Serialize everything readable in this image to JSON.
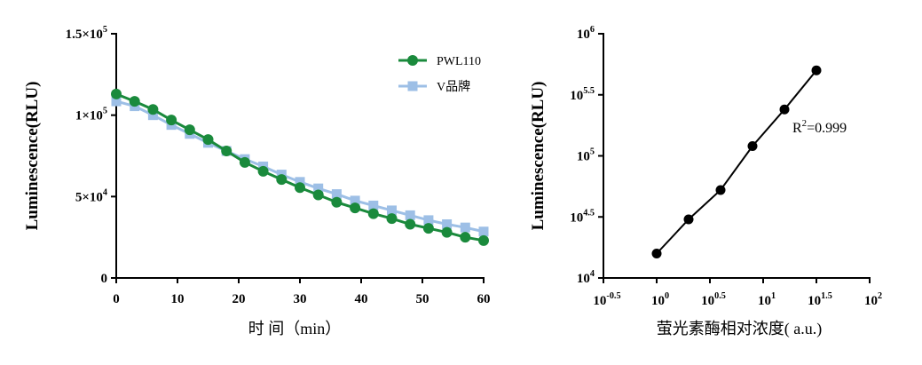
{
  "chart_data": [
    {
      "type": "line",
      "ylabel": "Luminescence(RLU)",
      "xlabel": "时 间（min）",
      "xlim": [
        0,
        60
      ],
      "ylim": [
        0,
        150000
      ],
      "x_ticks": [
        "0",
        "10",
        "20",
        "30",
        "40",
        "50",
        "60"
      ],
      "y_ticks": [
        {
          "base": "0",
          "exp": ""
        },
        {
          "base": "5×10",
          "exp": "4"
        },
        {
          "base": "1×10",
          "exp": "5"
        },
        {
          "base": "1.5×10",
          "exp": "5"
        }
      ],
      "grid": false,
      "legend_position": "top-right",
      "x": [
        0,
        3,
        6,
        9,
        12,
        15,
        18,
        21,
        24,
        27,
        30,
        33,
        36,
        39,
        42,
        45,
        48,
        51,
        54,
        57,
        60
      ],
      "series": [
        {
          "name": "PWL110",
          "color": "#1a8a3c",
          "marker": "circle",
          "values": [
            113000,
            108500,
            103500,
            97000,
            91000,
            85000,
            78000,
            71000,
            65500,
            60500,
            55500,
            51000,
            46500,
            43000,
            39500,
            36500,
            33000,
            30500,
            28000,
            25000,
            23000
          ]
        },
        {
          "name": "V品牌",
          "color": "#9dbfe6",
          "marker": "square",
          "values": [
            108500,
            105500,
            100000,
            94000,
            88500,
            83000,
            78000,
            73000,
            68500,
            63500,
            59000,
            55000,
            51500,
            47500,
            44500,
            41500,
            38500,
            35500,
            33000,
            31000,
            28500
          ]
        }
      ]
    },
    {
      "type": "scatter",
      "ylabel": "Luminescence(RLU)",
      "xlabel": "萤光素酶相对浓度( a.u.)",
      "x_scale": "log",
      "y_scale": "log",
      "xlim_log10": [
        -0.5,
        2
      ],
      "ylim_log10": [
        4,
        6
      ],
      "x_ticks": [
        {
          "base": "10",
          "exp": "-0.5"
        },
        {
          "base": "10",
          "exp": "0"
        },
        {
          "base": "10",
          "exp": "0.5"
        },
        {
          "base": "10",
          "exp": "1"
        },
        {
          "base": "10",
          "exp": "1.5"
        },
        {
          "base": "10",
          "exp": "2"
        }
      ],
      "y_ticks": [
        {
          "base": "10",
          "exp": "4"
        },
        {
          "base": "10",
          "exp": "4.5"
        },
        {
          "base": "10",
          "exp": "5"
        },
        {
          "base": "10",
          "exp": "5.5"
        },
        {
          "base": "10",
          "exp": "6"
        }
      ],
      "annotation": {
        "base": "R",
        "exp": "2",
        "rest": "=0.999"
      },
      "grid": false,
      "x_log10": [
        0,
        0.3,
        0.6,
        0.9,
        1.2,
        1.5
      ],
      "y_log10": [
        4.2,
        4.48,
        4.72,
        5.08,
        5.38,
        5.7
      ],
      "fit_line": true,
      "color": "#000000"
    }
  ]
}
